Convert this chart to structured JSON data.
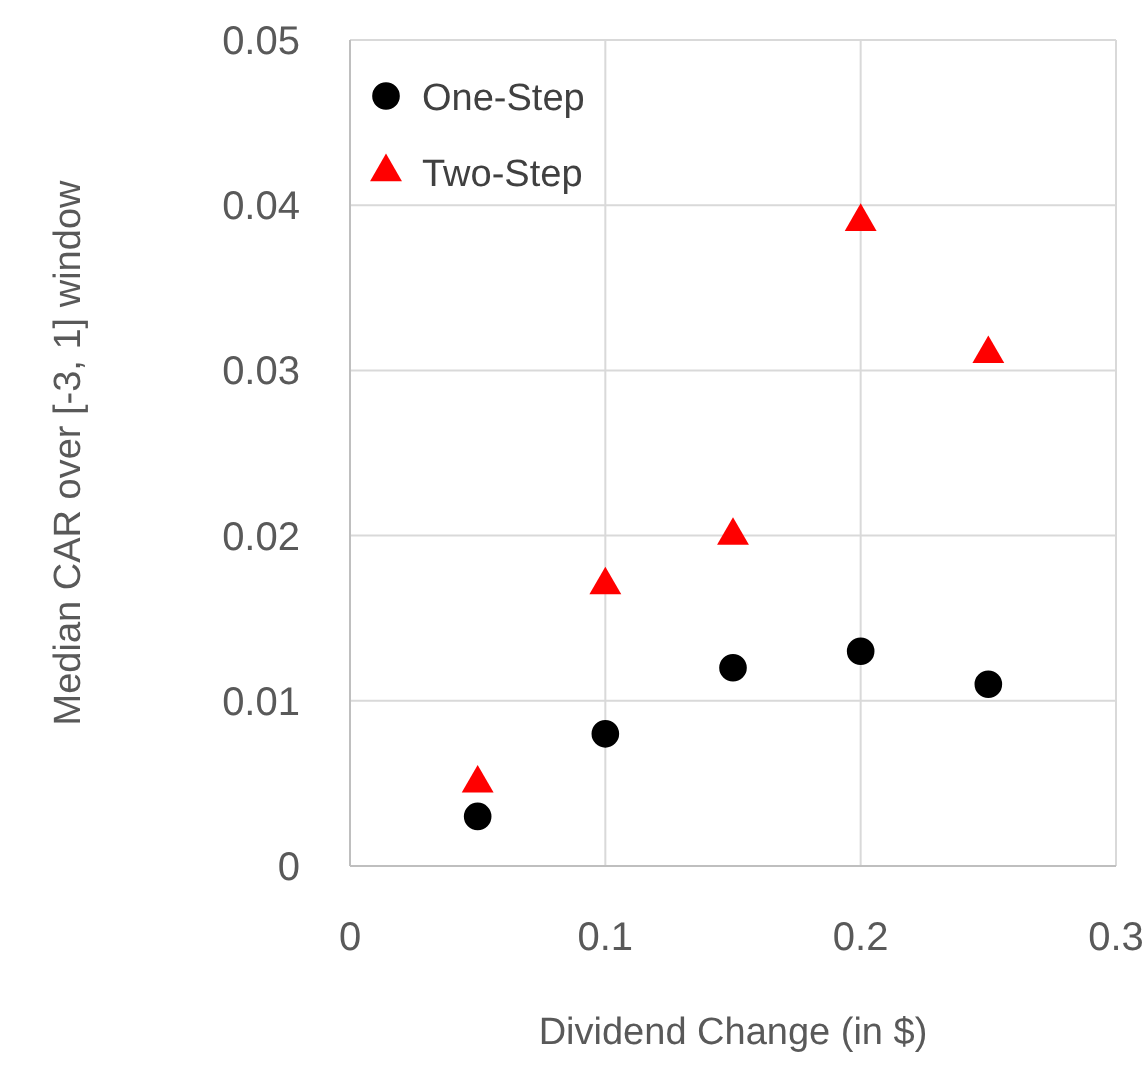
{
  "chart_data": {
    "type": "scatter",
    "xlabel": "Dividend Change (in $)",
    "ylabel": "Median CAR over [-3, 1] window",
    "x": [
      0.05,
      0.1,
      0.15,
      0.2,
      0.25
    ],
    "series": [
      {
        "name": "One-Step",
        "color": "#000000",
        "marker": "circle",
        "values": [
          0.003,
          0.008,
          0.012,
          0.013,
          0.011
        ]
      },
      {
        "name": "Two-Step",
        "color": "#ff0000",
        "marker": "triangle",
        "values": [
          0.005,
          0.017,
          0.02,
          0.039,
          0.031
        ]
      }
    ],
    "xlim": [
      0,
      0.3
    ],
    "xticks": [
      0,
      0.1,
      0.2,
      0.3
    ],
    "ylim": [
      0,
      0.05
    ],
    "yticks": [
      0,
      0.01,
      0.02,
      0.03,
      0.04,
      0.05
    ],
    "grid": true,
    "legend": "top left"
  }
}
